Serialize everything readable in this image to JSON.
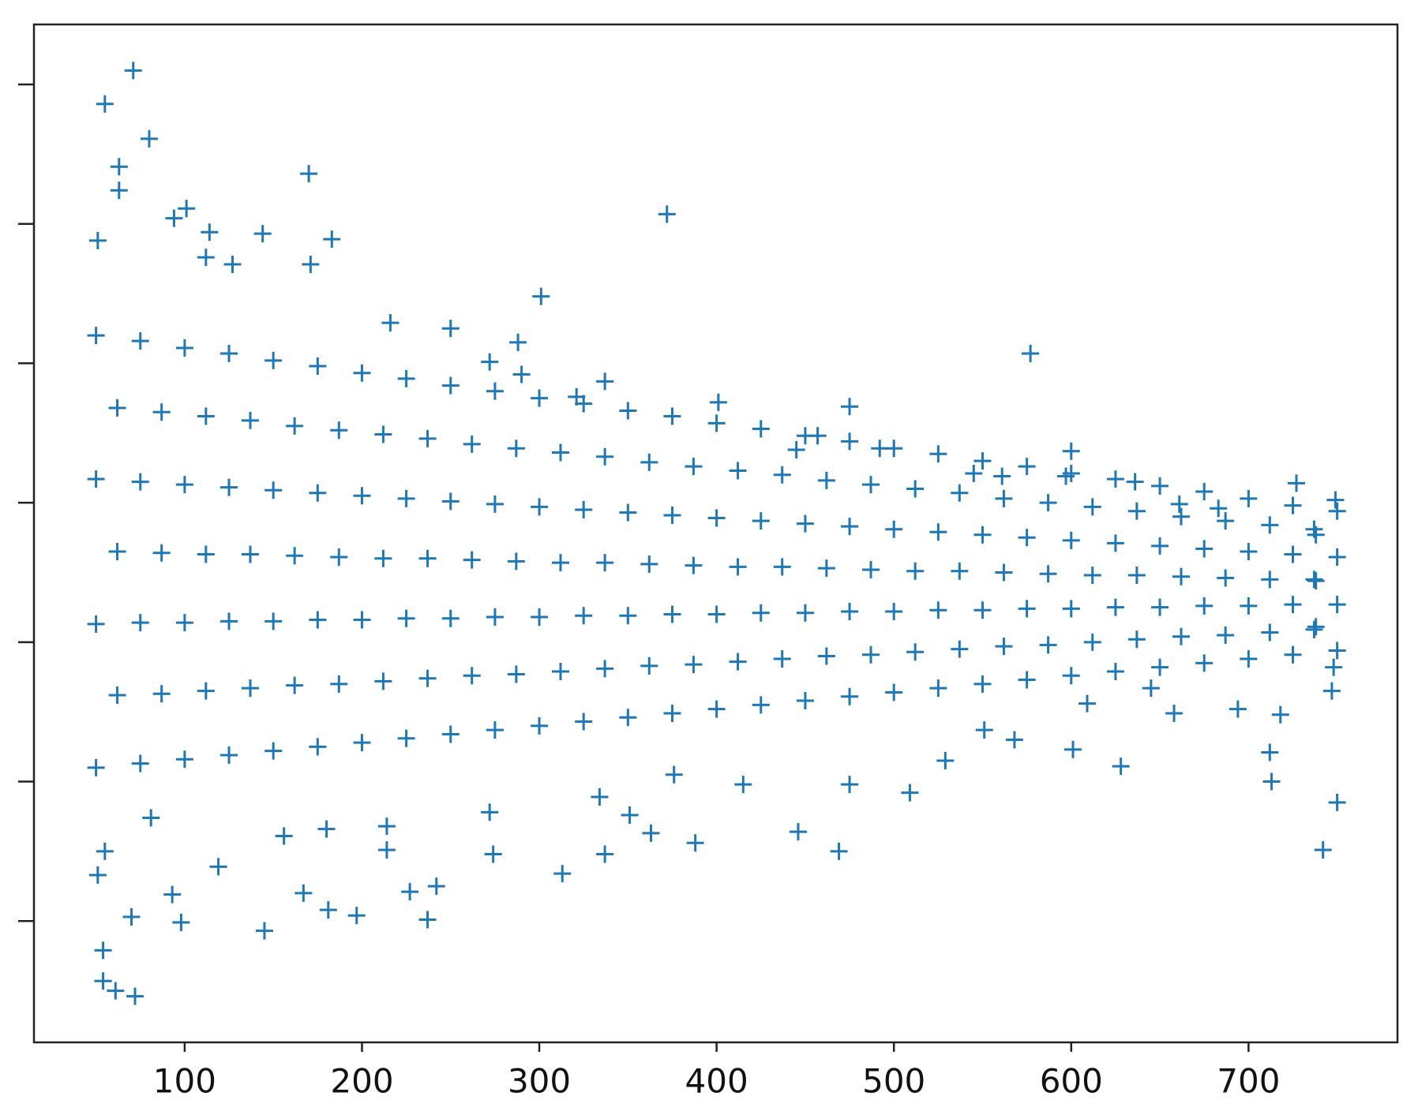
{
  "chart_data": {
    "type": "scatter",
    "marker": "+",
    "color": "#1f77b4",
    "xlim": [
      15,
      784
    ],
    "xticks": [
      100,
      200,
      300,
      400,
      500,
      600,
      700
    ],
    "ylim": [
      -3.87,
      3.43
    ],
    "yticks": [
      -3,
      -2,
      -1,
      0,
      1,
      2,
      3
    ],
    "ytick_labels": false,
    "x": [
      71,
      55,
      80,
      63,
      63,
      170,
      372,
      94,
      101,
      51,
      114,
      144,
      183,
      112,
      127,
      171,
      301,
      577,
      216,
      250,
      288,
      475,
      401,
      600,
      727,
      749,
      750,
      742,
      713,
      628,
      712,
      469,
      363,
      337,
      313,
      274,
      237,
      197,
      181,
      167,
      145,
      98,
      70,
      54,
      54,
      72,
      61,
      51,
      119,
      93,
      568,
      551,
      509,
      446,
      388,
      597,
      636,
      661,
      683,
      561,
      545,
      492,
      445,
      457,
      337,
      321,
      290,
      272,
      748,
      747,
      718,
      694,
      658,
      645,
      609,
      601,
      529,
      475,
      415,
      376,
      351,
      334,
      272,
      214,
      214,
      180,
      156,
      227,
      242,
      81,
      55,
      50,
      62,
      50,
      62,
      50,
      62,
      50,
      75,
      87,
      75,
      87,
      75,
      87,
      75,
      100,
      112,
      100,
      112,
      100,
      112,
      100,
      125,
      137,
      125,
      137,
      125,
      137,
      125,
      150,
      162,
      150,
      162,
      150,
      162,
      150,
      175,
      187,
      175,
      187,
      175,
      187,
      175,
      200,
      212,
      200,
      212,
      200,
      212,
      200,
      225,
      237,
      225,
      237,
      225,
      237,
      225,
      250,
      262,
      250,
      262,
      250,
      262,
      250,
      275,
      287,
      275,
      287,
      275,
      287,
      275,
      300,
      312,
      300,
      312,
      300,
      312,
      300,
      325,
      337,
      325,
      337,
      325,
      337,
      325,
      350,
      362,
      350,
      362,
      350,
      362,
      350,
      375,
      387,
      375,
      387,
      375,
      387,
      375,
      400,
      412,
      400,
      412,
      400,
      412,
      400,
      425,
      437,
      425,
      437,
      425,
      437,
      425,
      450,
      462,
      450,
      462,
      450,
      462,
      450,
      475,
      487,
      475,
      487,
      475,
      487,
      475,
      500,
      512,
      500,
      512,
      500,
      512,
      500,
      525,
      537,
      525,
      537,
      525,
      537,
      525,
      550,
      562,
      550,
      562,
      550,
      562,
      550,
      575,
      587,
      575,
      587,
      575,
      587,
      575,
      600,
      612,
      600,
      612,
      600,
      612,
      600,
      625,
      637,
      625,
      637,
      625,
      637,
      625,
      650,
      662,
      650,
      662,
      650,
      662,
      650,
      675,
      687,
      675,
      687,
      675,
      687,
      675,
      700,
      712,
      700,
      712,
      700,
      712,
      700,
      725,
      737,
      725,
      737,
      725,
      737,
      725,
      750,
      738,
      750,
      738,
      750,
      738,
      750
    ],
    "values": [
      3.1,
      2.86,
      2.61,
      2.41,
      2.24,
      2.36,
      2.07,
      2.04,
      2.11,
      1.88,
      1.94,
      1.93,
      1.89,
      1.76,
      1.71,
      1.71,
      1.48,
      1.07,
      1.29,
      1.25,
      1.15,
      0.69,
      0.72,
      0.37,
      0.14,
      0.02,
      -2.15,
      -2.49,
      -2.0,
      -1.89,
      -1.79,
      -2.5,
      -2.37,
      -2.52,
      -2.66,
      -2.52,
      -2.99,
      -2.96,
      -2.92,
      -2.8,
      -3.07,
      -3.01,
      -2.97,
      -3.21,
      -3.43,
      -3.54,
      -3.5,
      -2.67,
      -2.61,
      -2.81,
      -1.7,
      -1.63,
      -2.08,
      -2.36,
      -2.44,
      0.19,
      0.15,
      -0.01,
      -0.04,
      0.19,
      0.21,
      0.39,
      0.38,
      0.48,
      0.87,
      0.76,
      0.92,
      1.01,
      -1.18,
      -1.35,
      -1.52,
      -1.48,
      -1.51,
      -1.33,
      -1.44,
      -1.77,
      -1.85,
      -2.02,
      -2.02,
      -1.95,
      -2.24,
      -2.11,
      -2.22,
      -2.32,
      -2.49,
      -2.34,
      -2.39,
      -2.79,
      -2.75,
      -2.26,
      -2.5,
      1.2,
      0.68,
      0.17,
      -0.35,
      -0.87,
      -1.38,
      -1.9,
      1.16,
      0.65,
      0.15,
      -0.36,
      -0.86,
      -1.37,
      -1.87,
      1.11,
      0.62,
      0.13,
      -0.37,
      -0.86,
      -1.35,
      -1.84,
      1.07,
      0.59,
      0.11,
      -0.37,
      -0.85,
      -1.33,
      -1.81,
      1.02,
      0.55,
      0.09,
      -0.38,
      -0.85,
      -1.31,
      -1.78,
      0.98,
      0.52,
      0.07,
      -0.39,
      -0.84,
      -1.3,
      -1.75,
      0.93,
      0.49,
      0.05,
      -0.4,
      -0.84,
      -1.28,
      -1.72,
      0.89,
      0.46,
      0.03,
      -0.4,
      -0.83,
      -1.26,
      -1.69,
      0.84,
      0.42,
      0.01,
      -0.41,
      -0.83,
      -1.24,
      -1.66,
      0.8,
      0.39,
      -0.01,
      -0.42,
      -0.82,
      -1.23,
      -1.63,
      0.75,
      0.36,
      -0.03,
      -0.43,
      -0.82,
      -1.21,
      -1.6,
      0.71,
      0.33,
      -0.05,
      -0.43,
      -0.81,
      -1.19,
      -1.57,
      0.66,
      0.29,
      -0.07,
      -0.44,
      -0.81,
      -1.17,
      -1.54,
      0.62,
      0.26,
      -0.09,
      -0.45,
      -0.8,
      -1.16,
      -1.51,
      0.57,
      0.23,
      -0.11,
      -0.46,
      -0.8,
      -1.14,
      -1.48,
      0.53,
      0.2,
      -0.13,
      -0.46,
      -0.79,
      -1.12,
      -1.45,
      0.48,
      0.16,
      -0.15,
      -0.47,
      -0.79,
      -1.1,
      -1.42,
      0.44,
      0.13,
      -0.17,
      -0.48,
      -0.78,
      -1.09,
      -1.39,
      0.39,
      0.1,
      -0.19,
      -0.49,
      -0.78,
      -1.07,
      -1.36,
      0.35,
      0.07,
      -0.21,
      -0.49,
      -0.77,
      -1.05,
      -1.33,
      0.3,
      0.03,
      -0.23,
      -0.5,
      -0.77,
      -1.03,
      -1.3,
      0.26,
      0.0,
      -0.25,
      -0.51,
      -0.76,
      -1.02,
      -1.27,
      0.21,
      -0.03,
      -0.27,
      -0.52,
      -0.76,
      -1.0,
      -1.24,
      0.17,
      -0.06,
      -0.29,
      -0.52,
      -0.75,
      -0.98,
      -1.21,
      0.12,
      -0.1,
      -0.31,
      -0.53,
      -0.75,
      -0.96,
      -1.18,
      0.08,
      -0.13,
      -0.33,
      -0.54,
      -0.74,
      -0.95,
      -1.15,
      0.03,
      -0.16,
      -0.35,
      -0.55,
      -0.74,
      -0.93,
      -1.12,
      -0.02,
      -0.19,
      -0.37,
      -0.55,
      -0.73,
      -0.91,
      -1.09,
      -0.06,
      -0.23,
      -0.39,
      -0.56,
      -0.73,
      -0.89,
      -1.06
    ]
  }
}
